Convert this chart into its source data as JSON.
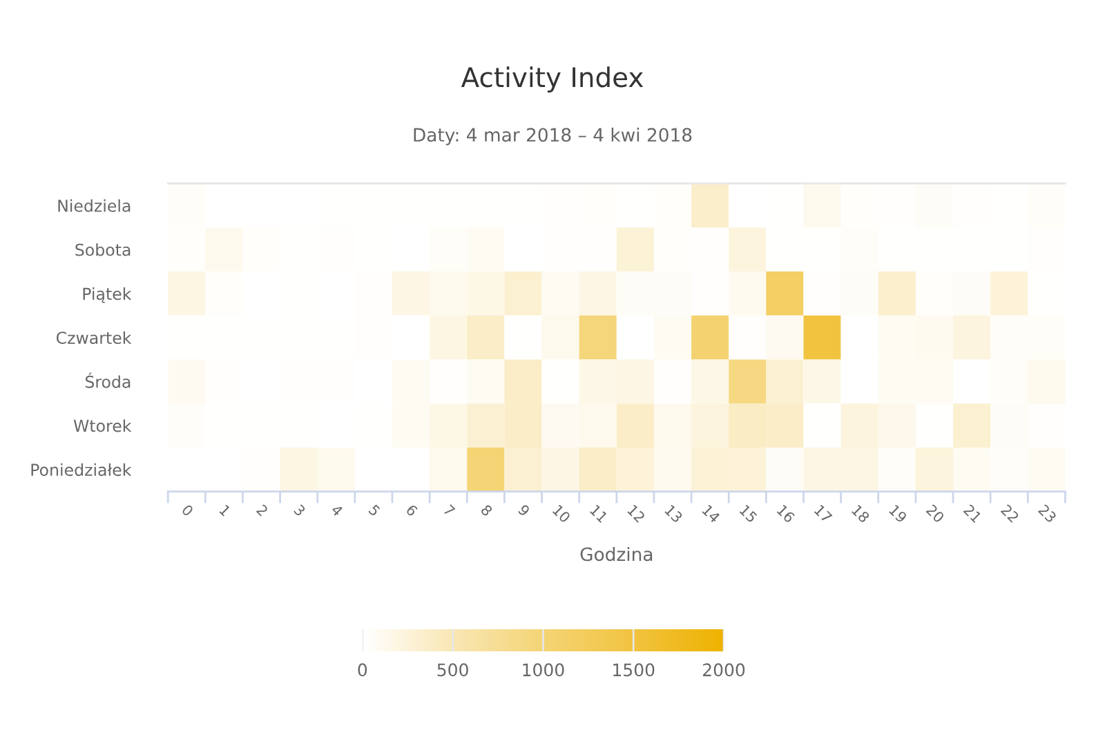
{
  "chart_data": {
    "type": "heatmap",
    "title": "Activity Index",
    "subtitle": "Daty: 4 mar 2018 – 4 kwi 2018",
    "xlabel": "Godzina",
    "categories": [
      "0",
      "1",
      "2",
      "3",
      "4",
      "5",
      "6",
      "7",
      "8",
      "9",
      "10",
      "11",
      "12",
      "13",
      "14",
      "15",
      "16",
      "17",
      "18",
      "19",
      "20",
      "21",
      "22",
      "23"
    ],
    "y_categories": [
      "Niedziela",
      "Sobota",
      "Piątek",
      "Czwartek",
      "Środa",
      "Wtorek",
      "Poniedziałek"
    ],
    "cells": [
      [
        50,
        5,
        5,
        5,
        15,
        10,
        10,
        10,
        10,
        10,
        20,
        25,
        10,
        30,
        350,
        5,
        10,
        130,
        25,
        20,
        70,
        20,
        15,
        50
      ],
      [
        30,
        120,
        30,
        15,
        20,
        10,
        5,
        50,
        80,
        5,
        20,
        20,
        280,
        30,
        20,
        230,
        10,
        10,
        50,
        15,
        10,
        10,
        10,
        20
      ],
      [
        200,
        25,
        5,
        15,
        5,
        20,
        180,
        130,
        170,
        320,
        90,
        180,
        60,
        60,
        20,
        110,
        1150,
        20,
        60,
        330,
        30,
        70,
        250,
        15
      ],
      [
        15,
        15,
        15,
        10,
        10,
        20,
        5,
        200,
        380,
        10,
        130,
        950,
        5,
        90,
        1050,
        20,
        100,
        1500,
        5,
        90,
        110,
        220,
        40,
        50
      ],
      [
        100,
        20,
        5,
        20,
        20,
        5,
        90,
        20,
        80,
        380,
        15,
        160,
        180,
        20,
        160,
        900,
        300,
        160,
        5,
        80,
        80,
        5,
        50,
        130
      ],
      [
        40,
        10,
        15,
        15,
        5,
        15,
        90,
        170,
        300,
        380,
        100,
        130,
        370,
        120,
        230,
        400,
        370,
        10,
        230,
        150,
        15,
        320,
        70,
        20
      ],
      [
        5,
        5,
        20,
        190,
        120,
        5,
        5,
        120,
        1000,
        300,
        180,
        380,
        250,
        110,
        280,
        260,
        60,
        180,
        180,
        40,
        240,
        90,
        40,
        80
      ]
    ],
    "clim": [
      0,
      2000
    ],
    "cticks": [
      0,
      500,
      1000,
      1500,
      2000
    ],
    "colors": [
      "#ffffff",
      "#f9e7b4",
      "#f4d474",
      "#f1c340",
      "#eeb200"
    ]
  }
}
